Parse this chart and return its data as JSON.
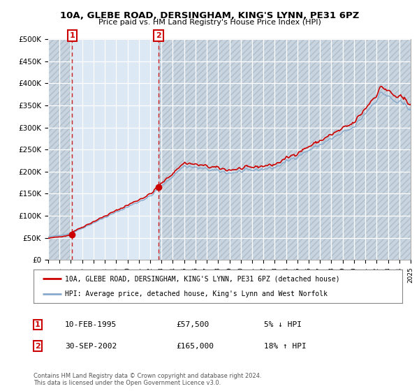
{
  "title_line1": "10A, GLEBE ROAD, DERSINGHAM, KING'S LYNN, PE31 6PZ",
  "title_line2": "Price paid vs. HM Land Registry's House Price Index (HPI)",
  "ylim": [
    0,
    500000
  ],
  "yticks": [
    0,
    50000,
    100000,
    150000,
    200000,
    250000,
    300000,
    350000,
    400000,
    450000,
    500000
  ],
  "ytick_labels": [
    "£0",
    "£50K",
    "£100K",
    "£150K",
    "£200K",
    "£250K",
    "£300K",
    "£350K",
    "£400K",
    "£450K",
    "£500K"
  ],
  "sale1_date": 1995.11,
  "sale1_price": 57500,
  "sale2_date": 2002.75,
  "sale2_price": 165000,
  "legend_line1": "10A, GLEBE ROAD, DERSINGHAM, KING'S LYNN, PE31 6PZ (detached house)",
  "legend_line2": "HPI: Average price, detached house, King's Lynn and West Norfolk",
  "note1_date": "10-FEB-1995",
  "note1_price": "£57,500",
  "note1_pct": "5% ↓ HPI",
  "note2_date": "30-SEP-2002",
  "note2_price": "£165,000",
  "note2_pct": "18% ↑ HPI",
  "footer": "Contains HM Land Registry data © Crown copyright and database right 2024.\nThis data is licensed under the Open Government Licence v3.0.",
  "line_color_red": "#cc0000",
  "line_color_blue": "#88aacc",
  "bg_hatch_color": "#c8d4e0",
  "bg_plain_color": "#dce8f4",
  "bg_highlight_color": "#dce8f4",
  "grid_color": "#c8d4e4"
}
